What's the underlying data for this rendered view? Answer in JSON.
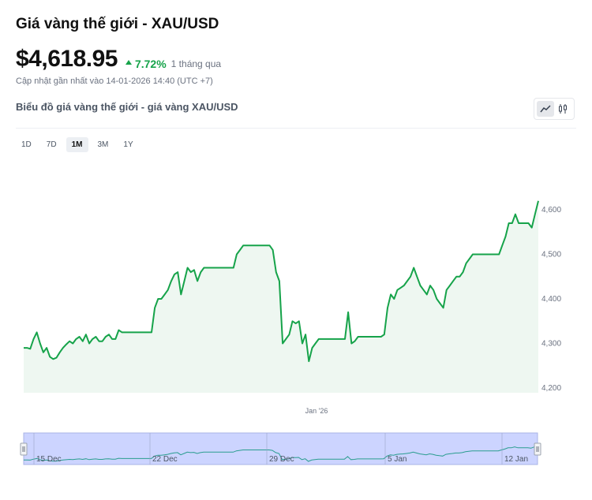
{
  "header": {
    "title": "Giá vàng thế giới - XAU/USD",
    "price": "$4,618.95",
    "change_pct": "7.72%",
    "change_period": "1 tháng qua",
    "updated": "Cập nhật gần nhất vào 14-01-2026 14:40 (UTC +7)"
  },
  "chart_header": {
    "subtitle": "Biểu đồ giá vàng thế giới - giá vàng XAU/USD",
    "chart_type_icons": [
      "line-chart-icon",
      "candlestick-icon"
    ]
  },
  "ranges": [
    {
      "label": "1D",
      "active": false
    },
    {
      "label": "7D",
      "active": false
    },
    {
      "label": "1M",
      "active": true
    },
    {
      "label": "3M",
      "active": false
    },
    {
      "label": "1Y",
      "active": false
    }
  ],
  "colors": {
    "line": "#16a34a",
    "fill": "#eef7f1",
    "navigator_fill": "#ccd4ff",
    "navigator_line": "#2a9d8f"
  },
  "chart_data": {
    "type": "area",
    "x_label": "Jan '26",
    "y_ticks": [
      "4,200",
      "4,300",
      "4,400",
      "4,500",
      "4,600"
    ],
    "ylim": [
      4200,
      4620
    ],
    "values": [
      4290,
      4290,
      4288,
      4310,
      4325,
      4300,
      4280,
      4290,
      4270,
      4265,
      4268,
      4280,
      4290,
      4298,
      4305,
      4300,
      4310,
      4315,
      4305,
      4320,
      4300,
      4310,
      4315,
      4305,
      4305,
      4315,
      4320,
      4310,
      4310,
      4330,
      4325,
      4325,
      4325,
      4325,
      4325,
      4325,
      4325,
      4325,
      4325,
      4325,
      4380,
      4400,
      4400,
      4410,
      4420,
      4440,
      4455,
      4460,
      4410,
      4440,
      4470,
      4460,
      4465,
      4440,
      4460,
      4470,
      4470,
      4470,
      4470,
      4470,
      4470,
      4470,
      4470,
      4470,
      4470,
      4500,
      4510,
      4520,
      4520,
      4520,
      4520,
      4520,
      4520,
      4520,
      4520,
      4520,
      4510,
      4460,
      4440,
      4300,
      4310,
      4320,
      4350,
      4345,
      4350,
      4300,
      4320,
      4260,
      4290,
      4300,
      4310,
      4310,
      4310,
      4310,
      4310,
      4310,
      4310,
      4310,
      4310,
      4370,
      4300,
      4305,
      4315,
      4315,
      4315,
      4315,
      4315,
      4315,
      4315,
      4315,
      4320,
      4380,
      4410,
      4400,
      4420,
      4425,
      4430,
      4440,
      4450,
      4470,
      4450,
      4430,
      4420,
      4410,
      4430,
      4420,
      4400,
      4390,
      4380,
      4420,
      4430,
      4440,
      4450,
      4450,
      4460,
      4480,
      4490,
      4500,
      4500,
      4500,
      4500,
      4500,
      4500,
      4500,
      4500,
      4500,
      4520,
      4540,
      4570,
      4570,
      4590,
      4570,
      4570,
      4570,
      4570,
      4560,
      4590,
      4620
    ],
    "navigator_labels": [
      "15 Dec",
      "22 Dec",
      "29 Dec",
      "5 Jan",
      "12 Jan"
    ]
  }
}
